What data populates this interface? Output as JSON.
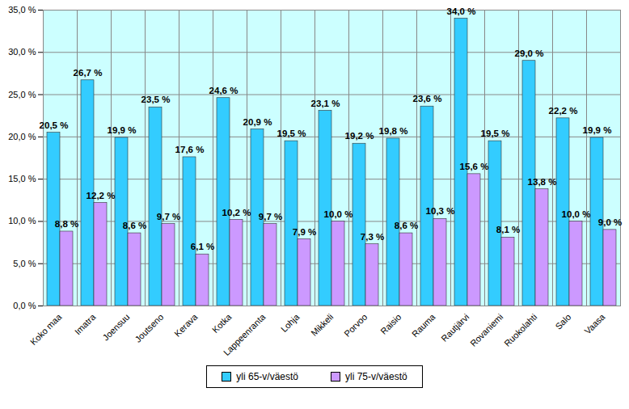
{
  "chart_data": {
    "type": "bar",
    "categories": [
      "Koko maa",
      "Imatra",
      "Joensuu",
      "Joutseno",
      "Kerava",
      "Kotka",
      "Lappeenranta",
      "Lohja",
      "Mikkeli",
      "Porvoo",
      "Raisio",
      "Rauma",
      "Rautjärvi",
      "Rovaniemi",
      "Ruokolahti",
      "Salo",
      "Vaasa"
    ],
    "series": [
      {
        "name": "yli 65-v/väestö",
        "color": "#33ccff",
        "values": [
          20.5,
          26.7,
          19.9,
          23.5,
          17.6,
          24.6,
          20.9,
          19.5,
          23.1,
          19.2,
          19.8,
          23.6,
          34.0,
          19.5,
          29.0,
          22.2,
          19.9
        ],
        "value_labels": [
          "20,5 %",
          "26,7 %",
          "19,9 %",
          "23,5 %",
          "17,6 %",
          "24,6 %",
          "20,9 %",
          "19,5 %",
          "23,1 %",
          "19,2 %",
          "19,8 %",
          "23,6 %",
          "34,0 %",
          "19,5 %",
          "29,0 %",
          "22,2 %",
          "19,9 %"
        ]
      },
      {
        "name": "yli 75-v/väestö",
        "color": "#cc99ff",
        "values": [
          8.8,
          12.2,
          8.6,
          9.7,
          6.1,
          10.2,
          9.7,
          7.9,
          10.0,
          7.3,
          8.6,
          10.3,
          15.6,
          8.1,
          13.8,
          10.0,
          9.0
        ],
        "value_labels": [
          "8,8 %",
          "12,2 %",
          "8,6 %",
          "9,7 %",
          "6,1 %",
          "10,2 %",
          "9,7 %",
          "7,9 %",
          "10,0 %",
          "7,3 %",
          "8,6 %",
          "10,3 %",
          "15,6 %",
          "8,1 %",
          "13,8 %",
          "10,0 %",
          "9,0 %"
        ]
      }
    ],
    "ylim": [
      0,
      35
    ],
    "yticks": [
      {
        "value": 0,
        "label": "0,0 %"
      },
      {
        "value": 5,
        "label": "5,0 %"
      },
      {
        "value": 10,
        "label": "10,0 %"
      },
      {
        "value": 15,
        "label": "15,0 %"
      },
      {
        "value": 20,
        "label": "20,0 %"
      },
      {
        "value": 25,
        "label": "25,0 %"
      },
      {
        "value": 30,
        "label": "30,0 %"
      },
      {
        "value": 35,
        "label": "35,0 %"
      }
    ],
    "grid": true,
    "data_labels": true,
    "legend": "bottom"
  }
}
